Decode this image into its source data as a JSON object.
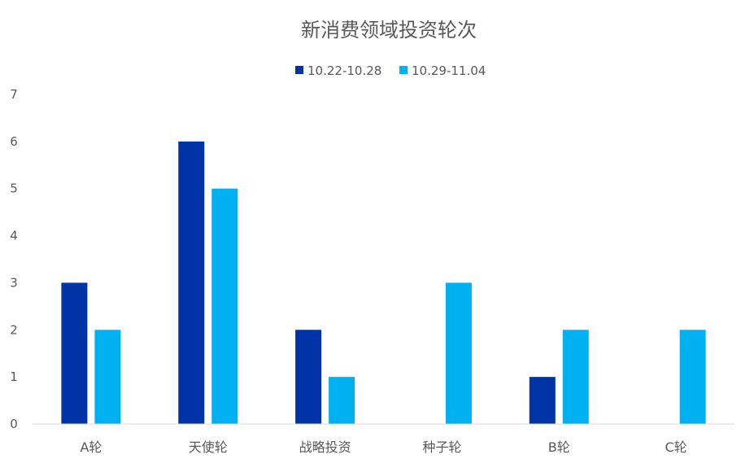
{
  "chart_data": {
    "type": "bar",
    "title": "新消费领域投资轮次",
    "xlabel": "",
    "ylabel": "",
    "categories": [
      "A轮",
      "天使轮",
      "战略投资",
      "种子轮",
      "B轮",
      "C轮"
    ],
    "series": [
      {
        "name": "10.22-10.28",
        "color": "#0033A6",
        "values": [
          3,
          6,
          2,
          0,
          1,
          0
        ]
      },
      {
        "name": "10.29-11.04",
        "color": "#00B0F0",
        "values": [
          2,
          5,
          1,
          3,
          2,
          2
        ]
      }
    ],
    "ylim": [
      0,
      7
    ],
    "yticks": [
      0,
      1,
      2,
      3,
      4,
      5,
      6,
      7
    ],
    "grid": false,
    "legend_position": "top"
  }
}
